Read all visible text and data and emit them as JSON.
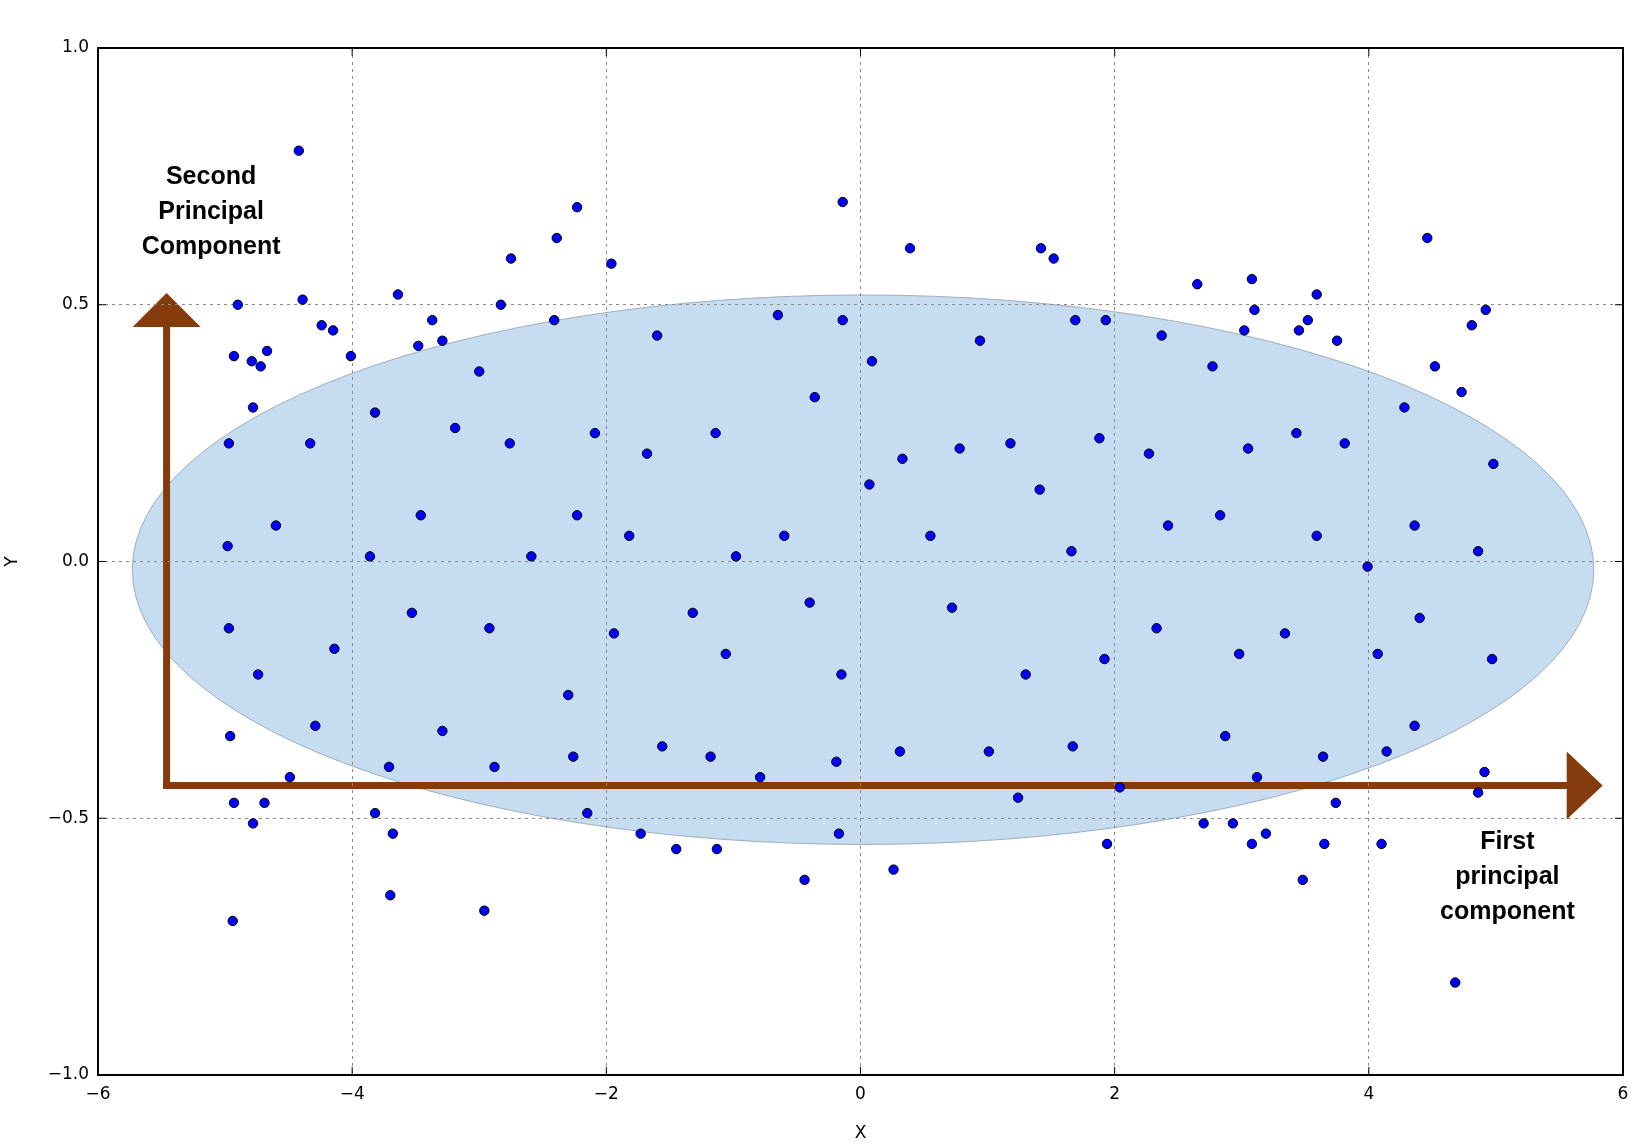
{
  "chart_data": {
    "type": "scatter",
    "xlabel": "X",
    "ylabel": "Y",
    "color": "#0000ff",
    "marker": "circle",
    "grid": true,
    "xlim": [
      -6,
      6
    ],
    "ylim": [
      -1,
      1
    ],
    "xticks": [
      -6,
      -4,
      -2,
      0,
      2,
      4,
      6
    ],
    "yticks": [
      {
        "value": -1,
        "label": "−1.0"
      },
      {
        "value": -0.5,
        "label": "−0.5"
      },
      {
        "value": 0,
        "label": "0.0"
      },
      {
        "value": 0.5,
        "label": "0.5"
      },
      {
        "value": 1,
        "label": "1.0"
      }
    ],
    "annotations": [
      "Second Principal Component",
      "First principal component"
    ],
    "x": [
      -4.42,
      -4.9,
      -4.39,
      -4.93,
      -4.79,
      -4.72,
      -4.67,
      -4.24,
      -4.15,
      -4.01,
      -3.64,
      -3.37,
      -3.29,
      -2.75,
      -2.83,
      -2.39,
      -2.41,
      -2.23,
      -1.96,
      -4.78,
      -0.14,
      0.39,
      1.42,
      1.52,
      -0.14,
      2.65,
      3.08,
      3.1,
      3.02,
      3.59,
      3.52,
      3.45,
      3.75,
      4.46,
      4.92,
      4.81,
      4.52,
      4.73,
      -4.96,
      -4.93,
      -4.78,
      -4.69,
      -4.49,
      -4.94,
      -3.82,
      -3.68,
      -3.7,
      -2.96,
      -2.15,
      -1.73,
      -1.45,
      -1.13,
      -0.44,
      -0.17,
      0.26,
      1.94,
      2.7,
      2.93,
      3.08,
      3.19,
      3.48,
      3.65,
      3.74,
      4.1,
      4.68,
      4.86,
      4.91,
      -0.65,
      0.09,
      0.94,
      1.69,
      1.93,
      2.37,
      2.77,
      -1.6,
      -3.0,
      -3.48,
      -4.97,
      -4.33,
      -3.82,
      -3.19,
      -2.76,
      -2.09,
      -1.68,
      -1.14,
      -0.36,
      0.33,
      0.78,
      1.18,
      1.88,
      2.27,
      3.05,
      3.43,
      3.81,
      4.28,
      4.98,
      -4.98,
      -4.6,
      -3.86,
      -3.46,
      -2.59,
      -2.23,
      -1.82,
      -0.98,
      -0.6,
      0.07,
      0.55,
      1.41,
      1.66,
      2.42,
      2.83,
      3.59,
      3.99,
      4.36,
      4.86,
      -4.97,
      -4.74,
      -4.14,
      -3.53,
      -2.92,
      -2.3,
      -1.94,
      -1.32,
      -1.06,
      -0.4,
      -0.15,
      0.72,
      1.3,
      1.92,
      2.33,
      2.98,
      3.34,
      4.07,
      4.4,
      4.97,
      -4.29,
      -3.71,
      -3.29,
      -2.88,
      -2.26,
      -1.56,
      -1.18,
      -0.79,
      -0.19,
      0.31,
      1.01,
      1.24,
      1.67,
      2.04,
      2.87,
      3.12,
      3.64,
      4.14,
      4.36
    ],
    "values": [
      0.8,
      0.5,
      0.51,
      0.4,
      0.39,
      0.38,
      0.41,
      0.46,
      0.45,
      0.4,
      0.52,
      0.47,
      0.43,
      0.59,
      0.5,
      0.63,
      0.47,
      0.69,
      0.58,
      0.3,
      0.7,
      0.61,
      0.61,
      0.59,
      0.47,
      0.54,
      0.55,
      0.49,
      0.45,
      0.52,
      0.47,
      0.45,
      0.43,
      0.63,
      0.49,
      0.46,
      0.38,
      0.33,
      -0.34,
      -0.47,
      -0.51,
      -0.47,
      -0.42,
      -0.7,
      -0.49,
      -0.53,
      -0.65,
      -0.68,
      -0.49,
      -0.53,
      -0.56,
      -0.56,
      -0.62,
      -0.53,
      -0.6,
      -0.55,
      -0.51,
      -0.51,
      -0.55,
      -0.53,
      -0.62,
      -0.55,
      -0.47,
      -0.55,
      -0.82,
      -0.45,
      -0.41,
      0.48,
      0.39,
      0.43,
      0.47,
      0.47,
      0.44,
      0.38,
      0.44,
      0.37,
      0.42,
      0.23,
      0.23,
      0.29,
      0.26,
      0.23,
      0.25,
      0.21,
      0.25,
      0.32,
      0.2,
      0.22,
      0.23,
      0.24,
      0.21,
      0.22,
      0.25,
      0.23,
      0.3,
      0.19,
      0.03,
      0.07,
      0.01,
      0.09,
      0.01,
      0.09,
      0.05,
      0.01,
      0.05,
      0.15,
      0.05,
      0.14,
      0.02,
      0.07,
      0.09,
      0.05,
      -0.01,
      0.07,
      0.02,
      -0.13,
      -0.22,
      -0.17,
      -0.1,
      -0.13,
      -0.26,
      -0.14,
      -0.1,
      -0.18,
      -0.08,
      -0.22,
      -0.09,
      -0.22,
      -0.19,
      -0.13,
      -0.18,
      -0.14,
      -0.18,
      -0.11,
      -0.19,
      -0.32,
      -0.4,
      -0.33,
      -0.4,
      -0.38,
      -0.36,
      -0.38,
      -0.42,
      -0.39,
      -0.37,
      -0.37,
      -0.46,
      -0.36,
      -0.44,
      -0.34,
      -0.42,
      -0.38,
      -0.37,
      -0.32
    ]
  }
}
